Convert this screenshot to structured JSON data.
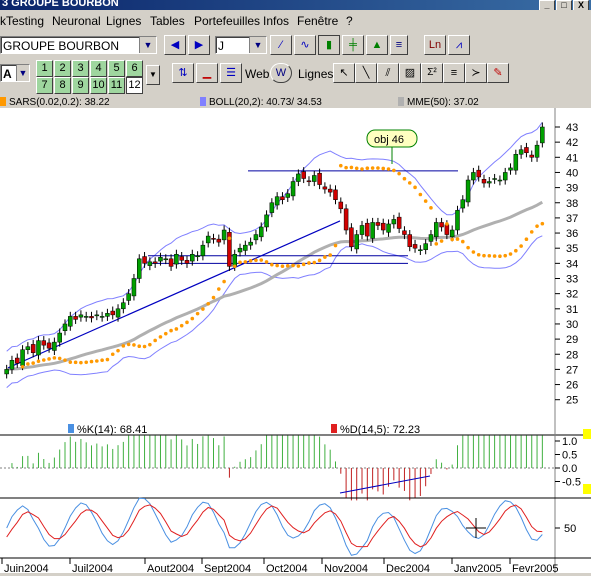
{
  "window": {
    "title": "3  GROUPE BOURBON",
    "controls": [
      "_",
      "□",
      "X"
    ]
  },
  "menu": [
    "kTesting",
    "Neuronal",
    "Lignes",
    "Tables",
    "Portefeuilles",
    "Infos",
    "Fenêtre",
    "?"
  ],
  "toolbar": {
    "symbol": "GROUPE BOURBON",
    "period": "J",
    "period_letter": "A",
    "numbers": [
      "1",
      "2",
      "3",
      "4",
      "5",
      "6",
      "7",
      "8",
      "9",
      "10",
      "11",
      "12"
    ],
    "selected_number": "12",
    "web_label": "Web",
    "lignes_label": "Lignes",
    "fx_label": "Ln",
    "sigma_label": "Σ²"
  },
  "legends": {
    "sars": "SARS(0.02,0.2): 38.22",
    "boll": "BOLL(20,2): 40.73/ 34.53",
    "mme": "MME(50): 37.02",
    "stoch_k": "%K(14): 68.41",
    "stoch_d": "%D(14,5): 72.23"
  },
  "colors": {
    "sars": "#ff9900",
    "boll": "#8080ff",
    "mme": "#b0b0b0",
    "stoch_k": "#4a90e2",
    "stoch_d": "#e02020",
    "up": "#00a000",
    "down": "#d00000"
  },
  "annotation": "obj 46",
  "chart_data": {
    "type": "candlestick",
    "y_ticks": [
      "43",
      "42",
      "41",
      "40",
      "39",
      "38",
      "37",
      "36",
      "35",
      "34",
      "33",
      "32",
      "31",
      "30",
      "29",
      "28",
      "27",
      "26",
      "25"
    ],
    "ylim": [
      25,
      43
    ],
    "x_labels": [
      "Juin2004",
      "Juil2004",
      "Aout2004",
      "Sept2004",
      "Oct2004",
      "Nov2004",
      "Dec2004",
      "Janv2005",
      "Fevr2005"
    ],
    "close": [
      27.0,
      27.6,
      27.4,
      28.3,
      28.5,
      28.1,
      28.9,
      28.6,
      28.4,
      28.8,
      29.4,
      30.0,
      30.5,
      30.3,
      30.6,
      30.5,
      30.4,
      30.6,
      30.5,
      30.7,
      30.6,
      31.0,
      31.4,
      32.0,
      33.0,
      34.3,
      34.0,
      34.1,
      34.0,
      34.4,
      34.3,
      33.8,
      34.6,
      34.2,
      34.0,
      34.6,
      34.5,
      35.2,
      35.8,
      35.6,
      35.4,
      36.2,
      33.8,
      34.6,
      35.0,
      35.2,
      35.4,
      35.9,
      36.4,
      37.2,
      38.0,
      38.4,
      38.2,
      38.6,
      39.4,
      39.9,
      39.6,
      39.4,
      39.8,
      39.2,
      38.9,
      38.7,
      38.2,
      37.6,
      36.2,
      35.1,
      35.9,
      36.5,
      35.8,
      36.7,
      36.5,
      36.2,
      36.6,
      36.9,
      36.3,
      35.9,
      35.1,
      35.0,
      34.9,
      35.3,
      35.9,
      36.7,
      36.4,
      35.9,
      36.2,
      37.5,
      38.2,
      39.5,
      40.0,
      39.7,
      39.3,
      39.4,
      39.6,
      39.5,
      40.0,
      40.3,
      41.2,
      41.5,
      41.3,
      41.0,
      41.8,
      43.0
    ],
    "stoch_k_level": 68.41,
    "stoch_d_level": 72.23,
    "oscillator_ticks": [
      "1.0",
      "0.5",
      "0.0",
      "-0.5"
    ],
    "stoch_ticks": [
      "50"
    ]
  }
}
